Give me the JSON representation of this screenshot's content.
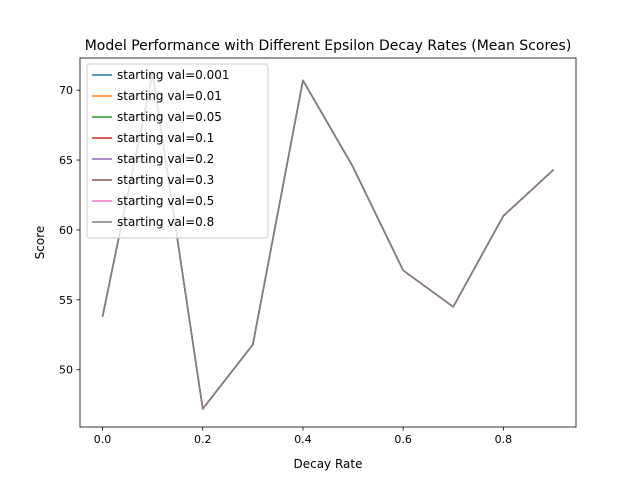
{
  "chart_data": {
    "type": "line",
    "title": "Model Performance with Different Epsilon Decay Rates (Mean Scores)",
    "xlabel": "Decay Rate",
    "ylabel": "Score",
    "xlim": [
      -0.045,
      0.945
    ],
    "ylim": [
      45.9,
      72.3
    ],
    "x_ticks": [
      {
        "value": 0.0,
        "label": "0.0"
      },
      {
        "value": 0.2,
        "label": "0.2"
      },
      {
        "value": 0.4,
        "label": "0.4"
      },
      {
        "value": 0.6,
        "label": "0.6"
      },
      {
        "value": 0.8,
        "label": "0.8"
      }
    ],
    "y_ticks": [
      {
        "value": 50,
        "label": "50"
      },
      {
        "value": 55,
        "label": "55"
      },
      {
        "value": 60,
        "label": "60"
      },
      {
        "value": 65,
        "label": "65"
      },
      {
        "value": 70,
        "label": "70"
      }
    ],
    "grid": false,
    "legend_position": "top-left",
    "x": [
      0.0,
      0.1,
      0.2,
      0.3,
      0.4,
      0.5,
      0.6,
      0.7,
      0.8,
      0.9
    ],
    "series": [
      {
        "name": "starting val=0.001",
        "color": "#1f77b4",
        "values": [
          53.8,
          71.2,
          47.2,
          51.8,
          70.7,
          64.5,
          57.1,
          54.5,
          61.0,
          64.3
        ]
      },
      {
        "name": "starting val=0.01",
        "color": "#ff7f0e",
        "values": [
          53.8,
          71.2,
          47.2,
          51.8,
          70.7,
          64.5,
          57.1,
          54.5,
          61.0,
          64.3
        ]
      },
      {
        "name": "starting val=0.05",
        "color": "#2ca02c",
        "values": [
          53.8,
          71.2,
          47.2,
          51.8,
          70.7,
          64.5,
          57.1,
          54.5,
          61.0,
          64.3
        ]
      },
      {
        "name": "starting val=0.1",
        "color": "#d62728",
        "values": [
          53.8,
          71.2,
          47.2,
          51.8,
          70.7,
          64.5,
          57.1,
          54.5,
          61.0,
          64.3
        ]
      },
      {
        "name": "starting val=0.2",
        "color": "#9467bd",
        "values": [
          53.8,
          71.2,
          47.2,
          51.8,
          70.7,
          64.5,
          57.1,
          54.5,
          61.0,
          64.3
        ]
      },
      {
        "name": "starting val=0.3",
        "color": "#8c564b",
        "values": [
          53.8,
          71.2,
          47.2,
          51.8,
          70.7,
          64.5,
          57.1,
          54.5,
          61.0,
          64.3
        ]
      },
      {
        "name": "starting val=0.5",
        "color": "#e377c2",
        "values": [
          53.8,
          71.2,
          47.2,
          51.8,
          70.7,
          64.5,
          57.1,
          54.5,
          61.0,
          64.3
        ]
      },
      {
        "name": "starting val=0.8",
        "color": "#7f7f7f",
        "values": [
          53.8,
          71.2,
          47.2,
          51.8,
          70.7,
          64.5,
          57.1,
          54.5,
          61.0,
          64.3
        ]
      }
    ]
  }
}
